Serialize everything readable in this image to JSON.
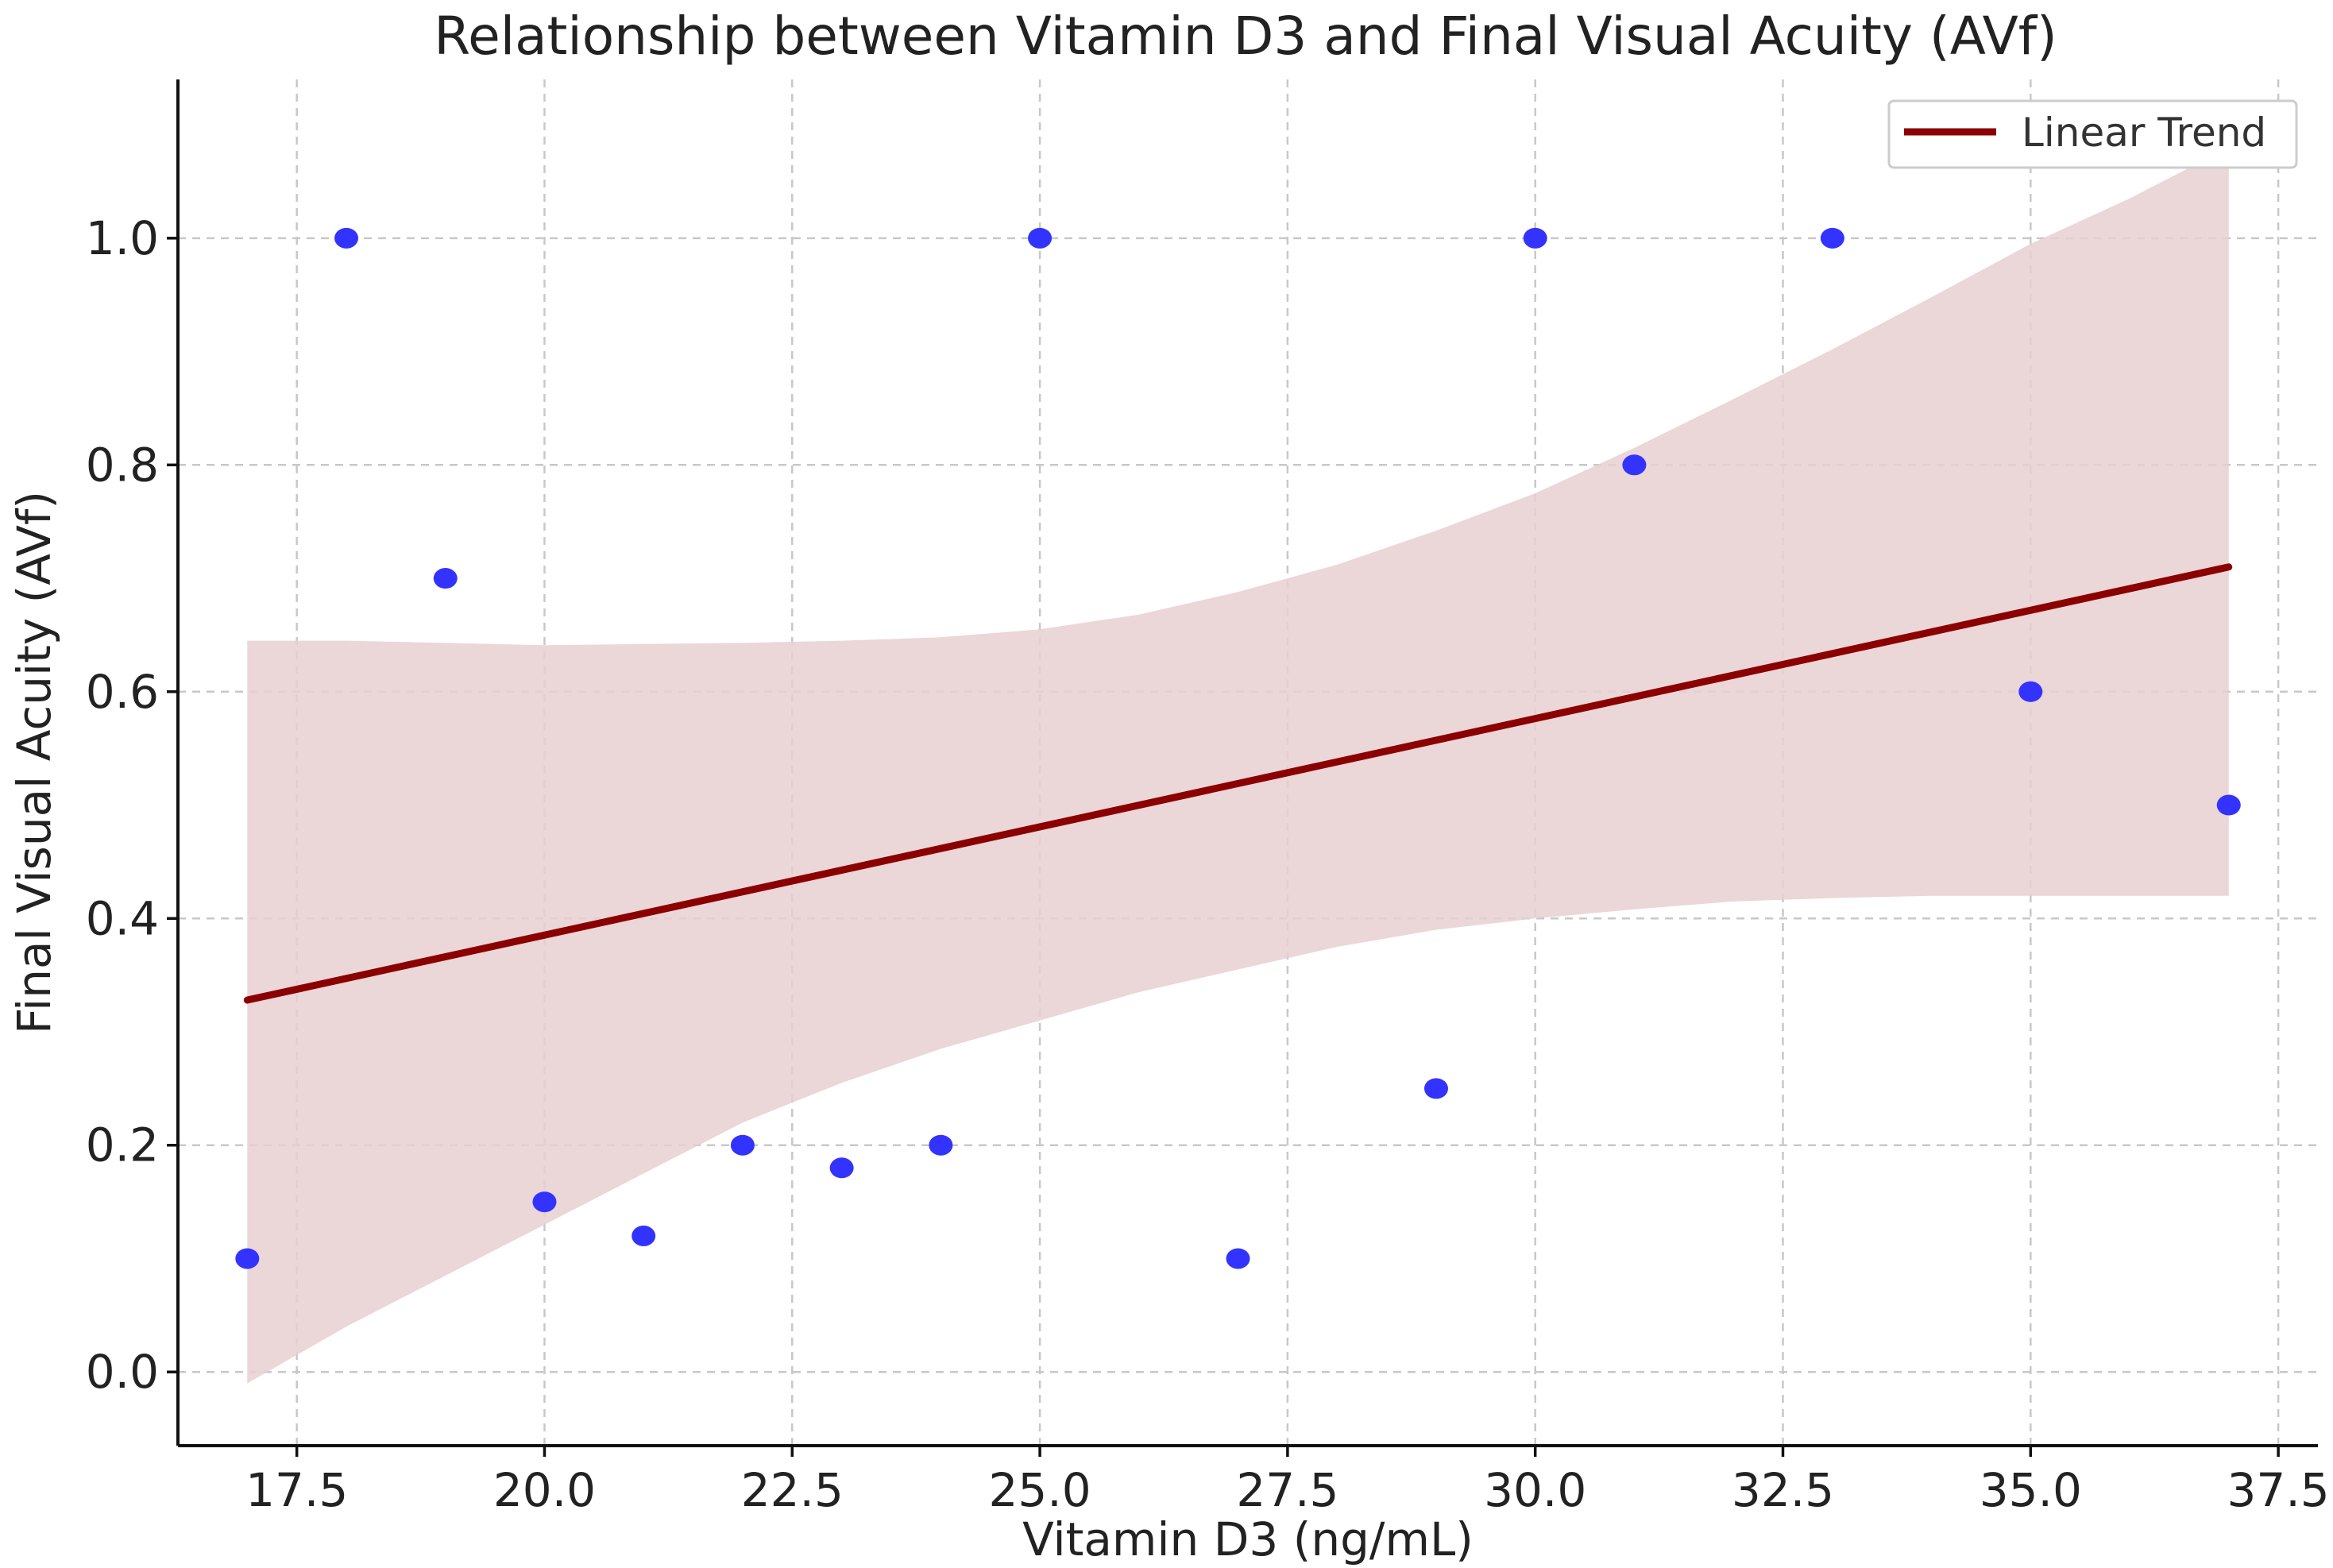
{
  "chart_data": {
    "type": "scatter",
    "title": "Relationship between Vitamin D3 and Final Visual Acuity (AVf)",
    "xlabel": "Vitamin D3 (ng/mL)",
    "ylabel": "Final Visual Acuity (AVf)",
    "xlim": [
      16.3,
      37.9
    ],
    "ylim": [
      -0.065,
      1.14
    ],
    "xticks": [
      17.5,
      20.0,
      22.5,
      25.0,
      27.5,
      30.0,
      32.5,
      35.0,
      37.5
    ],
    "xtick_labels": [
      "17.5",
      "20.0",
      "22.5",
      "25.0",
      "27.5",
      "30.0",
      "32.5",
      "35.0",
      "37.5"
    ],
    "yticks": [
      0.0,
      0.2,
      0.4,
      0.6,
      0.8,
      1.0
    ],
    "ytick_labels": [
      "0.0",
      "0.2",
      "0.4",
      "0.6",
      "0.8",
      "1.0"
    ],
    "grid": true,
    "points": {
      "x": [
        17,
        18,
        19,
        20,
        21,
        22,
        23,
        24,
        25,
        27,
        29,
        30,
        31,
        33,
        35,
        37
      ],
      "y": [
        0.1,
        1.0,
        0.7,
        0.15,
        0.12,
        0.2,
        0.18,
        0.2,
        1.0,
        0.1,
        0.25,
        1.0,
        0.8,
        1.0,
        0.6,
        0.5
      ],
      "color": "#3333ff"
    },
    "trend": {
      "name": "Linear Trend",
      "x": [
        17,
        37
      ],
      "y": [
        0.328,
        0.71
      ],
      "color": "#8b0000"
    },
    "confidence_band": {
      "color": "#e8cfd1",
      "x": [
        17,
        18,
        19,
        20,
        21,
        22,
        23,
        24,
        25,
        26,
        27,
        28,
        29,
        30,
        31,
        32,
        33,
        34,
        35,
        36,
        37
      ],
      "upper": [
        0.645,
        0.645,
        0.643,
        0.641,
        0.642,
        0.643,
        0.645,
        0.648,
        0.655,
        0.668,
        0.688,
        0.712,
        0.742,
        0.775,
        0.815,
        0.858,
        0.902,
        0.948,
        0.995,
        1.035,
        1.08
      ],
      "lower": [
        -0.01,
        0.04,
        0.085,
        0.13,
        0.175,
        0.22,
        0.255,
        0.285,
        0.31,
        0.335,
        0.355,
        0.375,
        0.39,
        0.4,
        0.408,
        0.415,
        0.418,
        0.42,
        0.42,
        0.42,
        0.42
      ]
    },
    "legend": {
      "location": "top-right",
      "entries": [
        "Linear Trend"
      ]
    }
  }
}
